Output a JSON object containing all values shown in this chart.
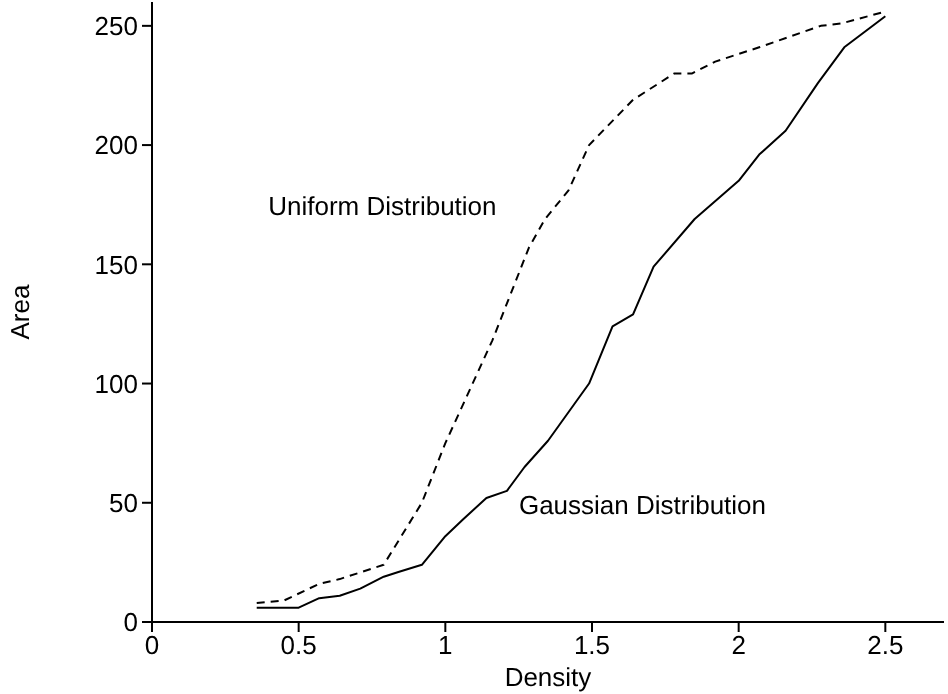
{
  "chart_data": {
    "type": "line",
    "xlabel": "Density",
    "ylabel": "Area",
    "xlim": [
      0,
      2.7
    ],
    "xticks": [
      0,
      0.5,
      1,
      1.5,
      2,
      2.5
    ],
    "ylim": [
      0,
      260
    ],
    "yticks": [
      0,
      50,
      100,
      150,
      200,
      250
    ],
    "marker": "none",
    "series": [
      {
        "name": "Uniform Distribution",
        "color": "#000000",
        "line_style": "dashed",
        "x": [
          0.357,
          0.45,
          0.57,
          0.64,
          0.79,
          0.92,
          1.0,
          1.16,
          1.285,
          1.34,
          1.42,
          1.49,
          1.64,
          1.78,
          1.84,
          1.92,
          2.07,
          2.28,
          2.35,
          2.5
        ],
        "values": [
          8,
          9,
          16,
          18,
          24,
          50,
          75,
          118,
          157,
          169,
          181,
          200,
          219,
          230,
          230,
          235,
          241,
          250,
          251,
          256
        ]
      },
      {
        "name": "Gaussian Distribution",
        "color": "#000000",
        "line_style": "solid",
        "x": [
          0.357,
          0.5,
          0.57,
          0.64,
          0.71,
          0.79,
          0.84,
          0.92,
          1.0,
          1.06,
          1.14,
          1.21,
          1.27,
          1.35,
          1.49,
          1.57,
          1.64,
          1.71,
          1.85,
          2.0,
          2.07,
          2.16,
          2.27,
          2.36,
          2.5
        ],
        "values": [
          6,
          6,
          10,
          11,
          14,
          19,
          21,
          24,
          36,
          43,
          52,
          55,
          65,
          76,
          100,
          124,
          129,
          149,
          169,
          185,
          196,
          206,
          226,
          241,
          254
        ]
      }
    ]
  }
}
